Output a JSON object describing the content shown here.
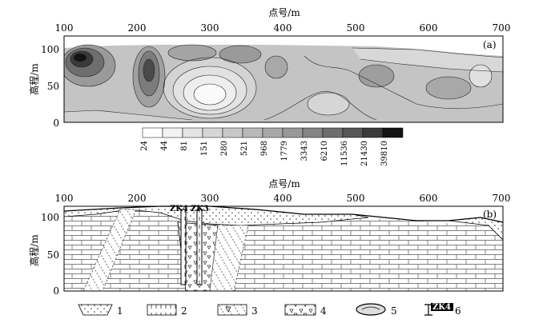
{
  "panel_a": {
    "label": "(a)",
    "x_title": "点号/m",
    "y_title": "高程/m",
    "x_ticks": [
      "100",
      "200",
      "300",
      "400",
      "500",
      "600",
      "700"
    ],
    "y_ticks": [
      "100",
      "50",
      "0"
    ],
    "colorbar": {
      "values": [
        "24",
        "44",
        "81",
        "151",
        "280",
        "521",
        "968",
        "1779",
        "3343",
        "6210",
        "11536",
        "21430",
        "39810"
      ],
      "colors": [
        "#ffffff",
        "#f2f2f2",
        "#e4e4e4",
        "#d6d6d6",
        "#c8c8c8",
        "#b8b8b8",
        "#a8a8a8",
        "#989898",
        "#848484",
        "#6e6e6e",
        "#565656",
        "#3a3a3a",
        "#141414"
      ]
    }
  },
  "panel_b": {
    "label": "(b)",
    "x_title": "点号/m",
    "y_title": "高程/m",
    "x_ticks": [
      "100",
      "200",
      "300",
      "400",
      "500",
      "600",
      "700"
    ],
    "y_ticks": [
      "100",
      "50",
      "0"
    ],
    "boreholes": [
      "ZK4",
      "ZK3"
    ]
  },
  "legend": [
    {
      "number": "1",
      "pattern": "dots"
    },
    {
      "number": "2",
      "pattern": "limestone"
    },
    {
      "number": "3",
      "pattern": "breccia-hatched"
    },
    {
      "number": "4",
      "pattern": "breccia-triangles"
    },
    {
      "number": "5",
      "pattern": "cave"
    },
    {
      "number": "6",
      "pattern": "borehole",
      "code": "ZK4"
    }
  ]
}
